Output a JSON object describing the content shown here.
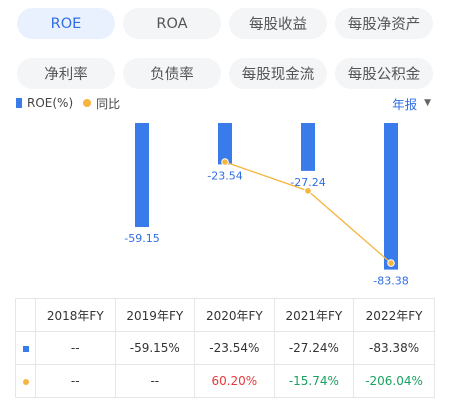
{
  "tabs": {
    "row1": [
      "ROE",
      "ROA",
      "每股收益",
      "每股净资产"
    ],
    "row2": [
      "净利率",
      "负债率",
      "每股现金流",
      "每股公积金"
    ]
  },
  "legend": {
    "series1": "ROE(%)",
    "series2": "同比"
  },
  "period": {
    "label": "年报",
    "caret": "▼"
  },
  "colors": {
    "bar": "#3a7bec",
    "line": "#f5b53f",
    "accent": "#2f6ee6",
    "positive": "#e4393c",
    "negative": "#1aa260"
  },
  "chart_data": {
    "type": "bar",
    "categories": [
      "2018年FY",
      "2019年FY",
      "2020年FY",
      "2021年FY",
      "2022年FY"
    ],
    "series": [
      {
        "name": "ROE(%)",
        "type": "bar",
        "values": [
          null,
          -59.15,
          -23.54,
          -27.24,
          -83.38
        ]
      },
      {
        "name": "同比",
        "type": "line",
        "values": [
          null,
          null,
          60.2,
          -15.74,
          -206.04
        ]
      }
    ],
    "bar_labels": [
      "",
      "-59.15",
      "-23.54",
      "-27.24",
      "-83.38"
    ]
  },
  "table": {
    "headers": [
      "2018年FY",
      "2019年FY",
      "2020年FY",
      "2021年FY",
      "2022年FY"
    ],
    "rows": [
      {
        "marker": "bar",
        "cells": [
          "--",
          "-59.15%",
          "-23.54%",
          "-27.24%",
          "-83.38%"
        ],
        "tones": [
          "",
          "",
          "",
          "",
          ""
        ]
      },
      {
        "marker": "line",
        "cells": [
          "--",
          "--",
          "60.20%",
          "-15.74%",
          "-206.04%"
        ],
        "tones": [
          "",
          "",
          "pos",
          "neg",
          "neg"
        ]
      }
    ]
  }
}
